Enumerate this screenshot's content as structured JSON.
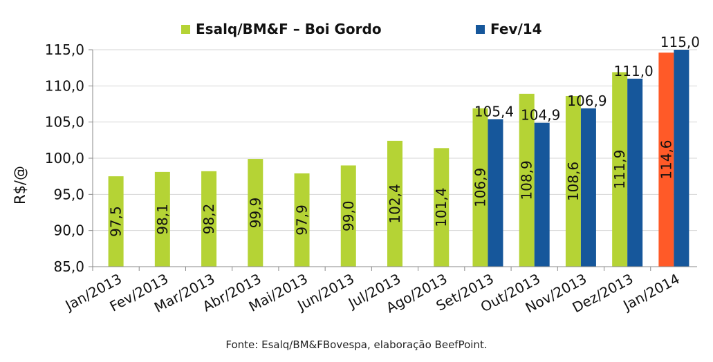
{
  "chart_data": {
    "type": "bar",
    "ylabel": "R$/@",
    "xlabel": "",
    "ylim": [
      85,
      115
    ],
    "yticks": [
      85,
      90,
      95,
      100,
      105,
      110,
      115
    ],
    "ytick_labels": [
      "85,0",
      "90,0",
      "95,0",
      "100,0",
      "105,0",
      "110,0",
      "115,0"
    ],
    "categories": [
      "Jan/2013",
      "Fev/2013",
      "Mar/2013",
      "Abr/2013",
      "Mai/2013",
      "Jun/2013",
      "Jul/2013",
      "Ago/2013",
      "Set/2013",
      "Out/2013",
      "Nov/2013",
      "Dez/2013",
      "Jan/2014"
    ],
    "series": [
      {
        "name": "Esalq/BM&F – Boi Gordo",
        "color": "#b5d335",
        "highlight_color": "#ff5a28",
        "highlight_index": 12,
        "values": [
          97.5,
          98.1,
          98.2,
          99.9,
          97.9,
          99.0,
          102.4,
          101.4,
          106.9,
          108.9,
          108.6,
          111.9,
          114.6
        ],
        "labels": [
          "97,5",
          "98,1",
          "98,2",
          "99,9",
          "97,9",
          "99,0",
          "102,4",
          "101,4",
          "106,9",
          "108,9",
          "108,6",
          "111,9",
          "114,6"
        ]
      },
      {
        "name": "Fev/14",
        "color": "#16579b",
        "values": [
          null,
          null,
          null,
          null,
          null,
          null,
          null,
          null,
          105.4,
          104.9,
          106.9,
          111.0,
          115.0
        ],
        "labels": [
          null,
          null,
          null,
          null,
          null,
          null,
          null,
          null,
          "105,4",
          "104,9",
          "106,9",
          "111,0",
          "115,0"
        ]
      }
    ],
    "grid": "horizontal",
    "legend_position": "top"
  },
  "source": "Fonte: Esalq/BM&FBovespa, elaboração BeefPoint."
}
